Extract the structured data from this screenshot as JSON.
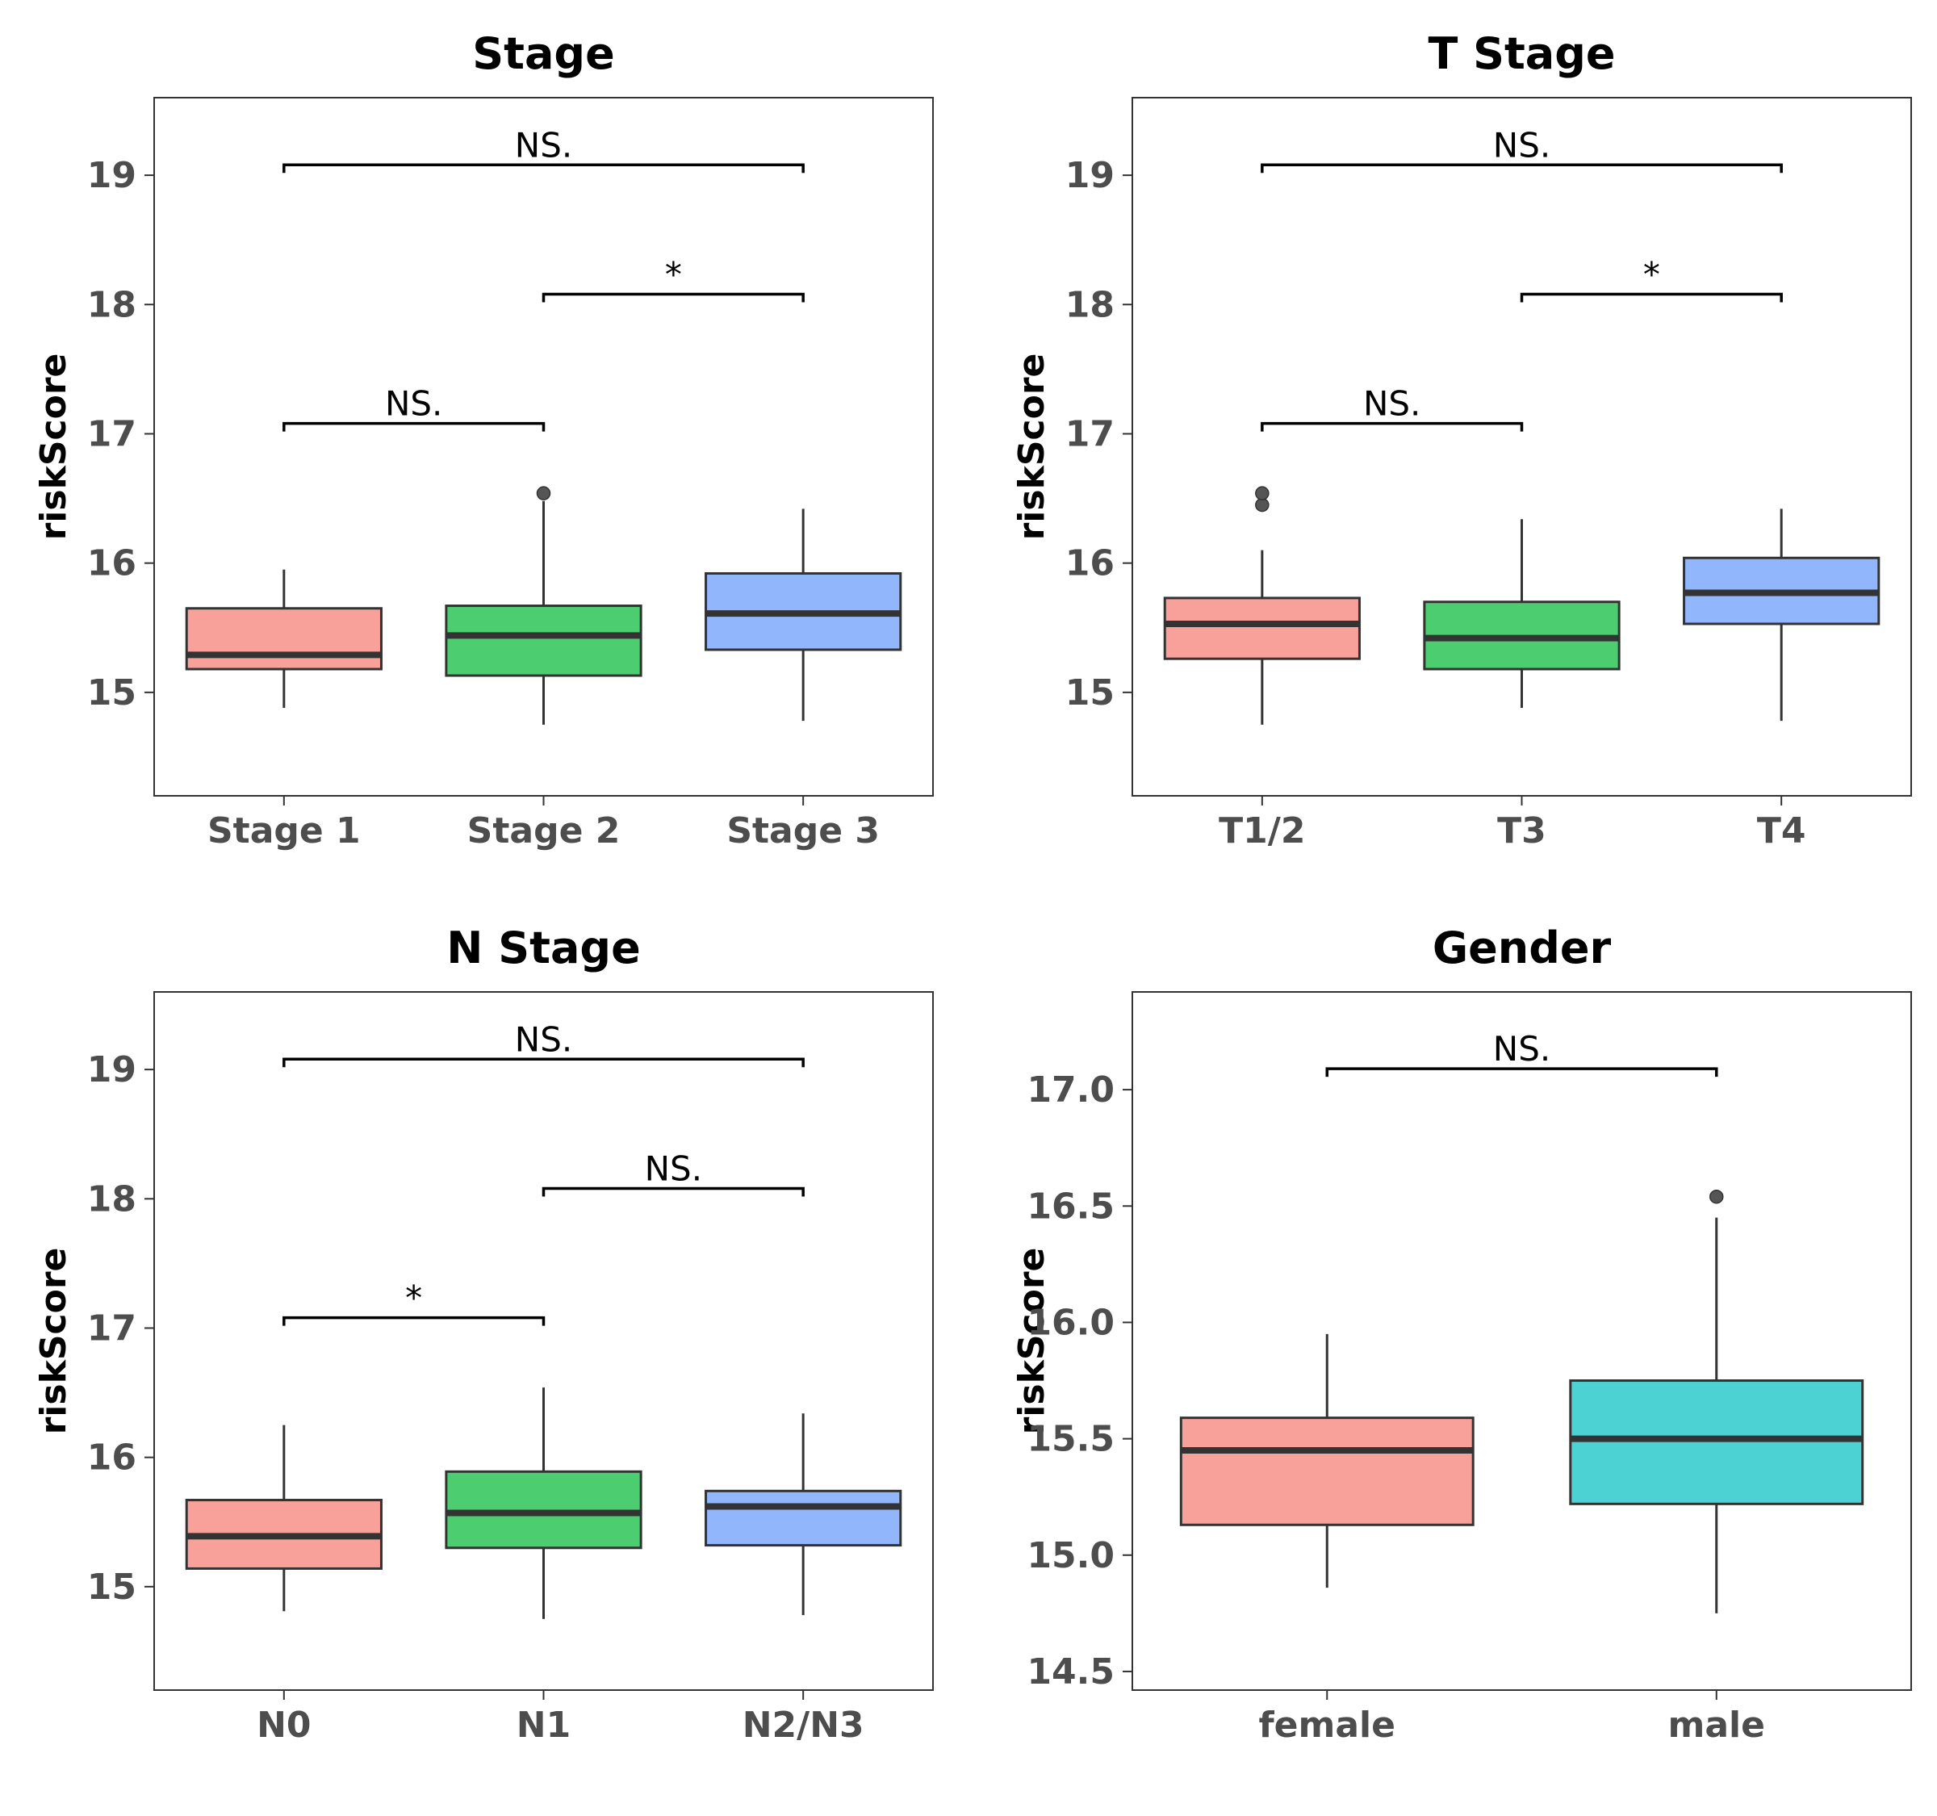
{
  "chart_data": [
    {
      "type": "box",
      "title": "Stage",
      "xlabel": "",
      "ylabel": "riskScore",
      "ylim": [
        14.2,
        19.6
      ],
      "yticks": [
        "15",
        "16",
        "17",
        "18",
        "19"
      ],
      "categories": [
        "Stage 1",
        "Stage 2",
        "Stage 3"
      ],
      "colors": [
        "#f8a09a",
        "#4cce70",
        "#92b6fc"
      ],
      "boxes": [
        {
          "whisker_low": 14.88,
          "q1": 15.18,
          "median": 15.29,
          "q3": 15.65,
          "whisker_high": 15.95,
          "outliers": []
        },
        {
          "whisker_low": 14.75,
          "q1": 15.13,
          "median": 15.44,
          "q3": 15.67,
          "whisker_high": 16.48,
          "outliers": [
            16.54
          ]
        },
        {
          "whisker_low": 14.78,
          "q1": 15.33,
          "median": 15.61,
          "q3": 15.92,
          "whisker_high": 16.42,
          "outliers": []
        }
      ],
      "comparisons": [
        {
          "from": 0,
          "to": 1,
          "y": 17.08,
          "label": "NS."
        },
        {
          "from": 1,
          "to": 2,
          "y": 18.08,
          "label": "*"
        },
        {
          "from": 0,
          "to": 2,
          "y": 19.08,
          "label": "NS."
        }
      ]
    },
    {
      "type": "box",
      "title": "T Stage",
      "xlabel": "",
      "ylabel": "riskScore",
      "ylim": [
        14.2,
        19.6
      ],
      "yticks": [
        "15",
        "16",
        "17",
        "18",
        "19"
      ],
      "categories": [
        "T1/2",
        "T3",
        "T4"
      ],
      "colors": [
        "#f8a09a",
        "#4cce70",
        "#92b6fc"
      ],
      "boxes": [
        {
          "whisker_low": 14.75,
          "q1": 15.26,
          "median": 15.53,
          "q3": 15.73,
          "whisker_high": 16.1,
          "outliers": [
            16.45,
            16.54
          ]
        },
        {
          "whisker_low": 14.88,
          "q1": 15.18,
          "median": 15.42,
          "q3": 15.7,
          "whisker_high": 16.34,
          "outliers": []
        },
        {
          "whisker_low": 14.78,
          "q1": 15.53,
          "median": 15.77,
          "q3": 16.04,
          "whisker_high": 16.42,
          "outliers": []
        }
      ],
      "comparisons": [
        {
          "from": 0,
          "to": 1,
          "y": 17.08,
          "label": "NS."
        },
        {
          "from": 1,
          "to": 2,
          "y": 18.08,
          "label": "*"
        },
        {
          "from": 0,
          "to": 2,
          "y": 19.08,
          "label": "NS."
        }
      ]
    },
    {
      "type": "box",
      "title": "N Stage",
      "xlabel": "",
      "ylabel": "riskScore",
      "ylim": [
        14.2,
        19.6
      ],
      "yticks": [
        "15",
        "16",
        "17",
        "18",
        "19"
      ],
      "categories": [
        "N0",
        "N1",
        "N2/N3"
      ],
      "colors": [
        "#f8a09a",
        "#4cce70",
        "#92b6fc"
      ],
      "boxes": [
        {
          "whisker_low": 14.81,
          "q1": 15.14,
          "median": 15.39,
          "q3": 15.67,
          "whisker_high": 16.25,
          "outliers": []
        },
        {
          "whisker_low": 14.75,
          "q1": 15.3,
          "median": 15.57,
          "q3": 15.89,
          "whisker_high": 16.54,
          "outliers": []
        },
        {
          "whisker_low": 14.78,
          "q1": 15.32,
          "median": 15.62,
          "q3": 15.74,
          "whisker_high": 16.34,
          "outliers": []
        }
      ],
      "comparisons": [
        {
          "from": 0,
          "to": 1,
          "y": 17.08,
          "label": "*"
        },
        {
          "from": 1,
          "to": 2,
          "y": 18.08,
          "label": "NS."
        },
        {
          "from": 0,
          "to": 2,
          "y": 19.08,
          "label": "NS."
        }
      ]
    },
    {
      "type": "box",
      "title": "Gender",
      "xlabel": "",
      "ylabel": "riskScore",
      "ylim": [
        14.42,
        17.42
      ],
      "yticks": [
        "14.5",
        "15.0",
        "15.5",
        "16.0",
        "16.5",
        "17.0"
      ],
      "categories": [
        "female",
        "male"
      ],
      "colors": [
        "#f8a09a",
        "#4dd2d4"
      ],
      "boxes": [
        {
          "whisker_low": 14.86,
          "q1": 15.13,
          "median": 15.45,
          "q3": 15.59,
          "whisker_high": 15.95,
          "outliers": []
        },
        {
          "whisker_low": 14.75,
          "q1": 15.22,
          "median": 15.5,
          "q3": 15.75,
          "whisker_high": 16.45,
          "outliers": [
            16.54
          ]
        }
      ],
      "comparisons": [
        {
          "from": 0,
          "to": 1,
          "y": 17.09,
          "label": "NS."
        }
      ]
    }
  ]
}
